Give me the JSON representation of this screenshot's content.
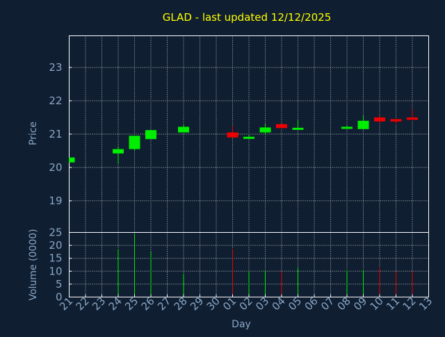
{
  "header": {
    "title": "GLAD - last updated 12/12/2025"
  },
  "colors": {
    "background": "#0f1e30",
    "up": "#00ee00",
    "down": "#ee0000",
    "title": "#ffff00",
    "text": "#8aa7c7",
    "grid": "#ffffff"
  },
  "chart_data": [
    {
      "type": "candlestick",
      "title": "GLAD - last updated 12/12/2025",
      "ylabel": "Price",
      "xlabel": "",
      "ylim": [
        18.05,
        23.95
      ],
      "yticks": [
        19,
        20,
        21,
        22,
        23
      ],
      "grid": true,
      "x": [
        "21",
        "22",
        "23",
        "24",
        "25",
        "26",
        "27",
        "28",
        "29",
        "30",
        "01",
        "02",
        "03",
        "04",
        "05",
        "06",
        "07",
        "08",
        "09",
        "10",
        "11",
        "12",
        "13"
      ],
      "candles": [
        {
          "day": "21",
          "open": 20.15,
          "close": 20.3,
          "high": 20.3,
          "low": 20.15,
          "dir": "up"
        },
        {
          "day": "24",
          "open": 20.42,
          "close": 20.55,
          "high": 20.62,
          "low": 20.1,
          "dir": "up"
        },
        {
          "day": "25",
          "open": 20.55,
          "close": 20.95,
          "high": 20.95,
          "low": 20.5,
          "dir": "up"
        },
        {
          "day": "26",
          "open": 20.85,
          "close": 21.12,
          "high": 21.12,
          "low": 20.85,
          "dir": "up"
        },
        {
          "day": "28",
          "open": 21.05,
          "close": 21.22,
          "high": 21.28,
          "low": 21.05,
          "dir": "up"
        },
        {
          "day": "01",
          "open": 21.05,
          "close": 20.9,
          "high": 21.25,
          "low": 20.9,
          "dir": "down"
        },
        {
          "day": "02",
          "open": 20.9,
          "close": 20.92,
          "high": 21.0,
          "low": 20.85,
          "dir": "up"
        },
        {
          "day": "03",
          "open": 21.05,
          "close": 21.2,
          "high": 21.3,
          "low": 20.98,
          "dir": "up"
        },
        {
          "day": "04",
          "open": 21.3,
          "close": 21.18,
          "high": 21.3,
          "low": 21.18,
          "dir": "down"
        },
        {
          "day": "05",
          "open": 21.17,
          "close": 21.19,
          "high": 21.42,
          "low": 21.17,
          "dir": "up"
        },
        {
          "day": "08",
          "open": 21.18,
          "close": 21.22,
          "high": 21.25,
          "low": 21.16,
          "dir": "up"
        },
        {
          "day": "09",
          "open": 21.15,
          "close": 21.4,
          "high": 21.55,
          "low": 21.15,
          "dir": "up"
        },
        {
          "day": "10",
          "open": 21.5,
          "close": 21.38,
          "high": 21.55,
          "low": 21.35,
          "dir": "down"
        },
        {
          "day": "11",
          "open": 21.45,
          "close": 21.38,
          "high": 21.45,
          "low": 21.3,
          "dir": "down"
        },
        {
          "day": "12",
          "open": 21.5,
          "close": 21.43,
          "high": 21.75,
          "low": 21.43,
          "dir": "down"
        }
      ]
    },
    {
      "type": "bar",
      "ylabel": "Volume (0000)",
      "xlabel": "Day",
      "ylim": [
        0,
        25
      ],
      "yticks": [
        0,
        5,
        10,
        15,
        20,
        25
      ],
      "grid": true,
      "categories": [
        "21",
        "22",
        "23",
        "24",
        "25",
        "26",
        "27",
        "28",
        "29",
        "30",
        "01",
        "02",
        "03",
        "04",
        "05",
        "06",
        "07",
        "08",
        "09",
        "10",
        "11",
        "12",
        "13"
      ],
      "bars": [
        {
          "day": "24",
          "value": 18.5,
          "dir": "up"
        },
        {
          "day": "25",
          "value": 24.5,
          "dir": "up"
        },
        {
          "day": "26",
          "value": 17.5,
          "dir": "up"
        },
        {
          "day": "28",
          "value": 9.0,
          "dir": "up"
        },
        {
          "day": "01",
          "value": 18.5,
          "dir": "down"
        },
        {
          "day": "02",
          "value": 10.0,
          "dir": "up"
        },
        {
          "day": "03",
          "value": 10.5,
          "dir": "up"
        },
        {
          "day": "04",
          "value": 10.0,
          "dir": "down"
        },
        {
          "day": "05",
          "value": 11.5,
          "dir": "up"
        },
        {
          "day": "08",
          "value": 10.5,
          "dir": "up"
        },
        {
          "day": "09",
          "value": 10.5,
          "dir": "up"
        },
        {
          "day": "10",
          "value": 11.5,
          "dir": "down"
        },
        {
          "day": "11",
          "value": 10.0,
          "dir": "down"
        },
        {
          "day": "12",
          "value": 10.0,
          "dir": "down"
        }
      ]
    }
  ]
}
